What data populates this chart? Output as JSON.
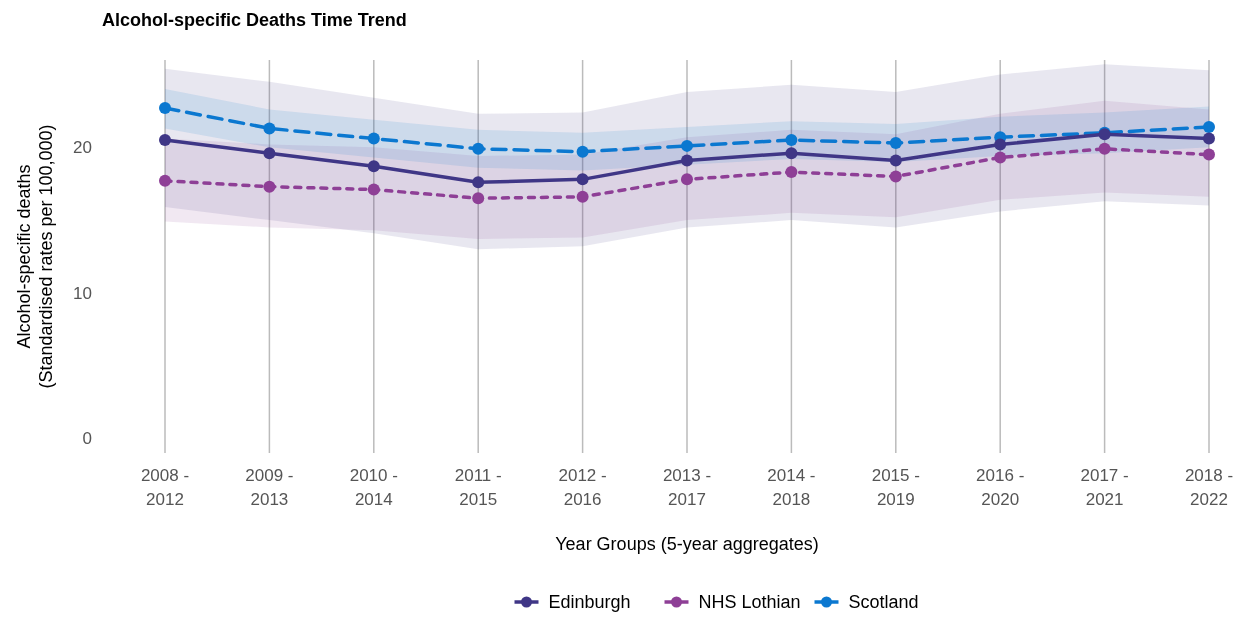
{
  "chart_data": {
    "type": "line",
    "title": "Alcohol-specific Deaths Time Trend",
    "xlabel": "Year Groups (5-year aggregates)",
    "ylabel": "Alcohol-specific deaths\n(Standardised rates per 100,000)",
    "categories": [
      "2008 -\n2012",
      "2009 -\n2013",
      "2010 -\n2014",
      "2011 -\n2015",
      "2012 -\n2016",
      "2013 -\n2017",
      "2014 -\n2018",
      "2015 -\n2019",
      "2016 -\n2020",
      "2017 -\n2021",
      "2018 -\n2022"
    ],
    "series": [
      {
        "name": "Edinburgh",
        "color": "#3f3686",
        "line_style": "solid",
        "values": [
          20.5,
          19.6,
          18.7,
          17.6,
          17.8,
          19.1,
          19.6,
          19.1,
          20.2,
          20.9,
          20.6
        ],
        "lower": [
          15.9,
          15.0,
          14.1,
          13.0,
          13.2,
          14.5,
          15.0,
          14.5,
          15.6,
          16.3,
          16.0
        ],
        "upper": [
          25.4,
          24.5,
          23.4,
          22.3,
          22.4,
          23.8,
          24.3,
          23.8,
          25.0,
          25.7,
          25.3
        ]
      },
      {
        "name": "NHS Lothian",
        "color": "#8e3f96",
        "line_style": "dotted",
        "values": [
          17.7,
          17.3,
          17.1,
          16.5,
          16.6,
          17.8,
          18.3,
          18.0,
          19.3,
          19.9,
          19.5
        ],
        "lower": [
          14.9,
          14.5,
          14.3,
          13.7,
          13.8,
          15.0,
          15.5,
          15.2,
          16.4,
          16.9,
          16.6
        ],
        "upper": [
          20.6,
          20.2,
          20.0,
          19.4,
          19.5,
          20.7,
          21.2,
          20.9,
          22.3,
          23.2,
          22.6
        ]
      },
      {
        "name": "Scotland",
        "color": "#0b78d0",
        "line_style": "dashed",
        "values": [
          22.7,
          21.3,
          20.6,
          19.9,
          19.7,
          20.1,
          20.5,
          20.3,
          20.7,
          21.0,
          21.4
        ],
        "lower": [
          21.3,
          20.0,
          19.3,
          18.6,
          18.4,
          18.8,
          19.2,
          19.0,
          19.4,
          19.6,
          20.0
        ],
        "upper": [
          24.0,
          22.6,
          21.9,
          21.2,
          21.0,
          21.4,
          21.8,
          21.6,
          22.1,
          22.4,
          22.8
        ]
      }
    ],
    "ylim": [
      -1,
      26
    ],
    "yticks": [
      0,
      10,
      20
    ],
    "grid": "x",
    "legend": "bottom",
    "marker": "circle"
  }
}
